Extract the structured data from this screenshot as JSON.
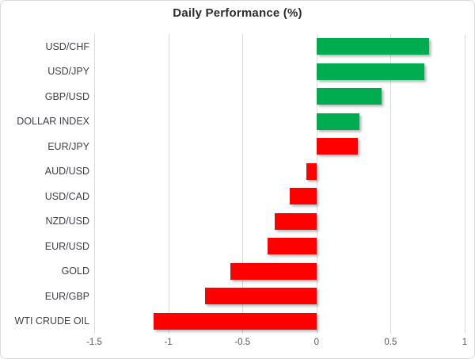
{
  "chart_data": {
    "type": "bar",
    "orientation": "horizontal",
    "title": "Daily Performance (%)",
    "categories": [
      "USD/CHF",
      "USD/JPY",
      "GBP/USD",
      "DOLLAR INDEX",
      "EUR/JPY",
      "AUD/USD",
      "USD/CAD",
      "NZD/USD",
      "EUR/USD",
      "GOLD",
      "EUR/GBP",
      "WTI CRUDE OIL"
    ],
    "values": [
      0.76,
      0.73,
      0.44,
      0.29,
      0.28,
      -0.07,
      -0.18,
      -0.28,
      -0.33,
      -0.58,
      -0.75,
      -1.1
    ],
    "bar_colors": [
      "#00AC50",
      "#00AC50",
      "#00AC50",
      "#00AC50",
      "#FF0000",
      "#FF0000",
      "#FF0000",
      "#FF0000",
      "#FF0000",
      "#FF0000",
      "#FF0000",
      "#FF0000"
    ],
    "xlabel": "",
    "ylabel": "",
    "xlim": [
      -1.5,
      1
    ],
    "xticks": [
      -1.5,
      -1,
      -0.5,
      0,
      0.5,
      1
    ],
    "xtick_labels": [
      "-1.5",
      "-1",
      "-0.5",
      "0",
      "0.5",
      "1"
    ],
    "grid": "vertical-only",
    "legend": "none",
    "colors": {
      "positive_green": "#00AC50",
      "negative_red": "#FF0000",
      "gridline": "#d9d9d9",
      "title_text": "#2b2b33",
      "category_text": "#404047",
      "tick_text": "#595959"
    }
  }
}
